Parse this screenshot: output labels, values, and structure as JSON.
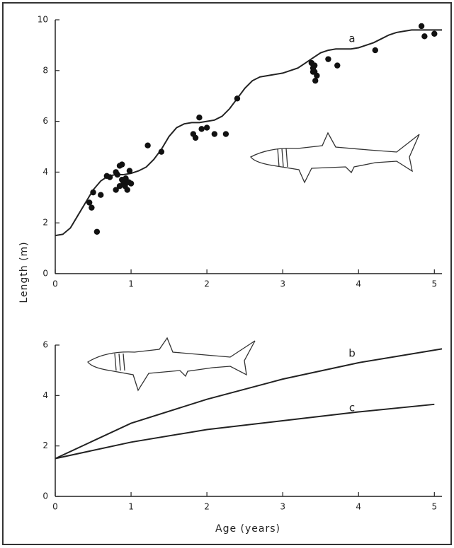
{
  "chart_data": [
    {
      "type": "line",
      "ylabel": "Length (m)",
      "xlim": [
        0,
        5.1
      ],
      "ylim": [
        0,
        10
      ],
      "xticks": [
        0,
        1,
        2,
        3,
        4,
        5
      ],
      "yticks": [
        0,
        2,
        4,
        6,
        8,
        10
      ],
      "scatter": {
        "color": "#111",
        "x": [
          0.45,
          0.48,
          0.5,
          0.55,
          0.6,
          0.68,
          0.72,
          0.8,
          0.82,
          0.85,
          0.88,
          0.8,
          0.9,
          0.92,
          0.95,
          0.97,
          0.98,
          0.88,
          0.85,
          1.0,
          0.93,
          1.22,
          1.4,
          1.82,
          1.85,
          1.9,
          1.93,
          2.0,
          2.1,
          2.25,
          2.4,
          3.38,
          3.4,
          3.42,
          3.45,
          3.43,
          3.42,
          3.4,
          3.6,
          3.72,
          4.22,
          4.83,
          4.87,
          5.0
        ],
        "values": [
          2.8,
          2.6,
          3.2,
          1.65,
          3.1,
          3.85,
          3.8,
          3.3,
          3.9,
          4.25,
          4.3,
          4.0,
          3.6,
          3.45,
          3.3,
          3.6,
          4.05,
          3.7,
          3.45,
          3.55,
          3.75,
          5.05,
          4.8,
          5.5,
          5.35,
          6.15,
          5.7,
          5.75,
          5.5,
          5.5,
          6.9,
          8.3,
          8.1,
          7.95,
          7.8,
          7.6,
          8.2,
          7.95,
          8.45,
          8.2,
          8.8,
          9.75,
          9.35,
          9.45
        ]
      },
      "series": [
        {
          "name": "a",
          "color": "#222",
          "x": [
            0,
            0.1,
            0.2,
            0.3,
            0.4,
            0.5,
            0.6,
            0.7,
            0.8,
            0.9,
            1.0,
            1.1,
            1.2,
            1.3,
            1.4,
            1.5,
            1.6,
            1.7,
            1.8,
            1.9,
            2.0,
            2.1,
            2.2,
            2.3,
            2.4,
            2.5,
            2.6,
            2.7,
            2.8,
            2.9,
            3.0,
            3.1,
            3.2,
            3.3,
            3.4,
            3.5,
            3.6,
            3.7,
            3.8,
            3.9,
            4.0,
            4.1,
            4.2,
            4.3,
            4.4,
            4.5,
            4.6,
            4.7,
            4.8,
            4.9,
            5.0,
            5.1
          ],
          "values": [
            1.5,
            1.55,
            1.8,
            2.3,
            2.8,
            3.3,
            3.65,
            3.85,
            3.9,
            3.9,
            3.95,
            4.05,
            4.2,
            4.5,
            4.9,
            5.4,
            5.75,
            5.9,
            5.95,
            5.95,
            6.0,
            6.05,
            6.2,
            6.5,
            6.9,
            7.3,
            7.6,
            7.75,
            7.8,
            7.85,
            7.9,
            8.0,
            8.1,
            8.3,
            8.5,
            8.7,
            8.8,
            8.85,
            8.85,
            8.85,
            8.9,
            9.0,
            9.1,
            9.25,
            9.4,
            9.5,
            9.55,
            9.6,
            9.6,
            9.6,
            9.6,
            9.6
          ]
        }
      ]
    },
    {
      "type": "line",
      "xlabel": "Age (years)",
      "xlim": [
        0,
        5.1
      ],
      "ylim": [
        0,
        6
      ],
      "xticks": [
        0,
        1,
        2,
        3,
        4,
        5
      ],
      "yticks": [
        0,
        2,
        4,
        6
      ],
      "series": [
        {
          "name": "b",
          "color": "#222",
          "x": [
            0,
            1,
            2,
            3,
            4,
            5.1
          ],
          "values": [
            1.5,
            2.9,
            3.85,
            4.65,
            5.3,
            5.85
          ]
        },
        {
          "name": "c",
          "color": "#222",
          "x": [
            0,
            1,
            2,
            3,
            4,
            5
          ],
          "values": [
            1.5,
            2.15,
            2.65,
            3.0,
            3.35,
            3.65
          ]
        }
      ]
    }
  ]
}
